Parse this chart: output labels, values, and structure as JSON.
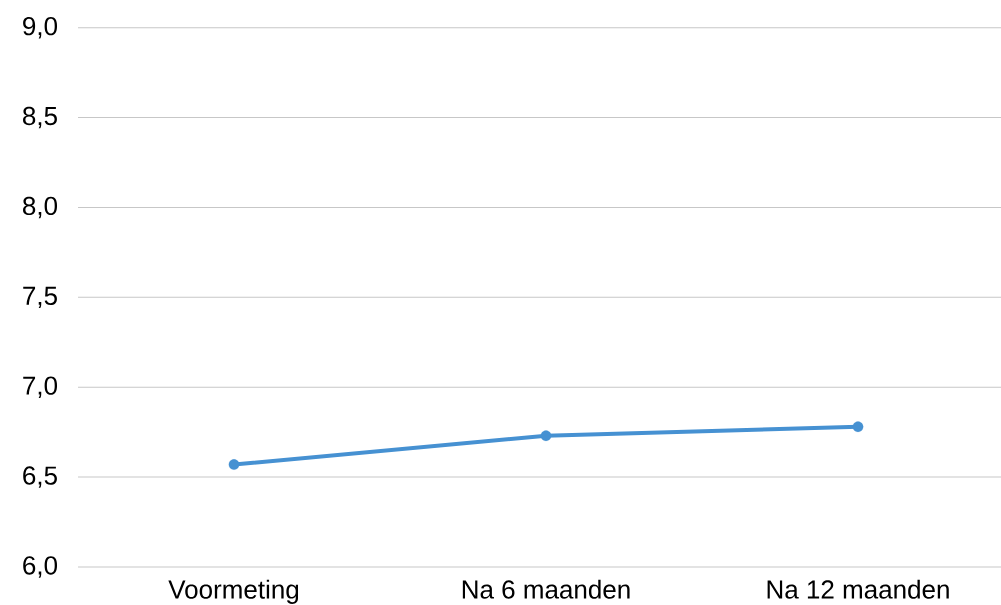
{
  "chart_data": {
    "type": "line",
    "categories": [
      "Voormeting",
      "Na 6 maanden",
      "Na 12 maanden"
    ],
    "series": [
      {
        "color": "#4691d2",
        "values": [
          6.57,
          6.73,
          6.78
        ]
      }
    ],
    "ylim": [
      6,
      9
    ],
    "yticks": [
      {
        "value": 6,
        "label": "6,0"
      },
      {
        "value": 6.5,
        "label": "6,5"
      },
      {
        "value": 7,
        "label": "7,0"
      },
      {
        "value": 7.5,
        "label": "7,5"
      },
      {
        "value": 8,
        "label": "8,0"
      },
      {
        "value": 8.5,
        "label": "8,5"
      },
      {
        "value": 9,
        "label": "9,0"
      }
    ],
    "grid": "y",
    "marker": "circle",
    "line_style": "solid"
  }
}
